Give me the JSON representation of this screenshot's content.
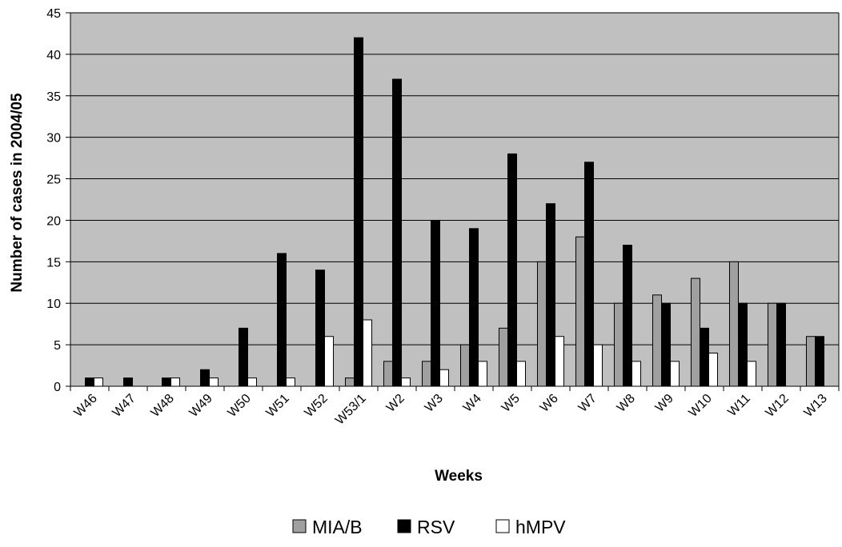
{
  "chart_data": {
    "type": "bar",
    "categories": [
      "W46",
      "W47",
      "W48",
      "W49",
      "W50",
      "W51",
      "W52",
      "W53/1",
      "W2",
      "W3",
      "W4",
      "W5",
      "W6",
      "W7",
      "W8",
      "W9",
      "W10",
      "W11",
      "W12",
      "W13"
    ],
    "series": [
      {
        "name": "MIA/B",
        "color": "#a0a0a0",
        "values": [
          0,
          0,
          0,
          0,
          0,
          0,
          0,
          1,
          3,
          3,
          5,
          7,
          15,
          18,
          10,
          11,
          13,
          15,
          10,
          6
        ]
      },
      {
        "name": "RSV",
        "color": "#000000",
        "values": [
          1,
          1,
          1,
          2,
          7,
          16,
          14,
          42,
          37,
          20,
          19,
          28,
          22,
          27,
          17,
          10,
          7,
          10,
          10,
          6
        ]
      },
      {
        "name": "hMPV",
        "color": "#ffffff",
        "values": [
          1,
          0,
          1,
          1,
          1,
          1,
          6,
          8,
          1,
          2,
          3,
          3,
          6,
          5,
          3,
          3,
          4,
          3,
          0,
          0
        ]
      }
    ],
    "xlabel": "Weeks",
    "ylabel": "Number of cases in 2004/05",
    "ylim": [
      0,
      45
    ],
    "yticks": [
      0,
      5,
      10,
      15,
      20,
      25,
      30,
      35,
      40,
      45
    ],
    "grid": true,
    "legend_position": "bottom",
    "plot_background": "#c0c0c0"
  }
}
